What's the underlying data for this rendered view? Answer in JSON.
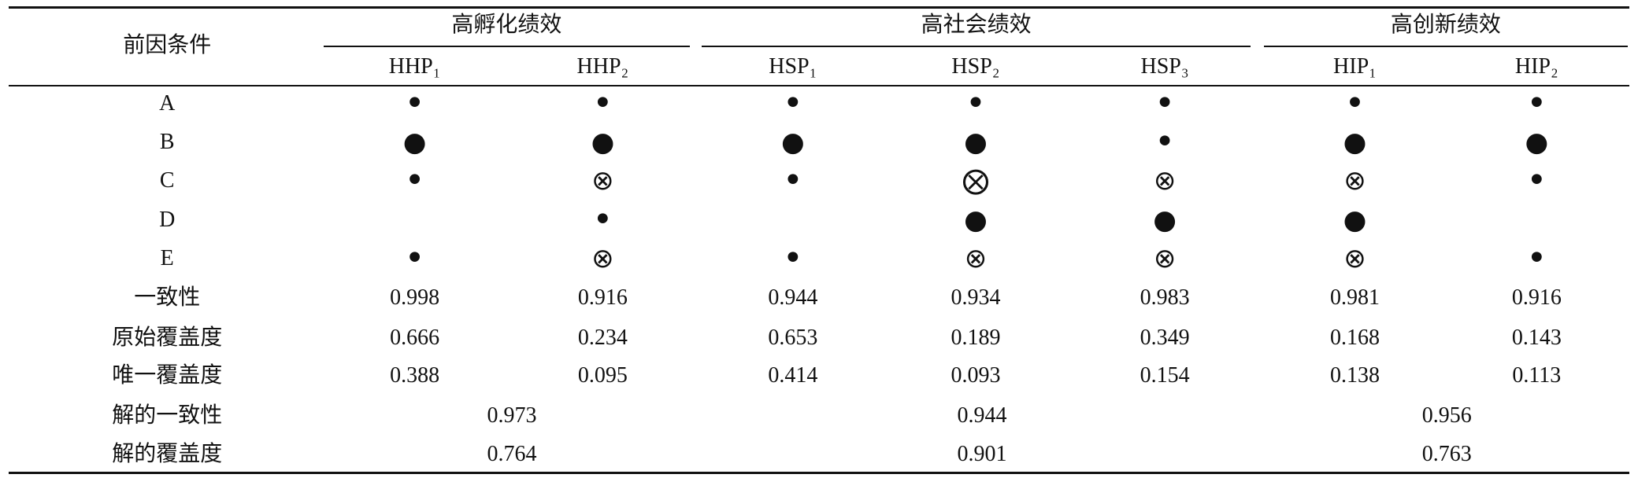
{
  "table": {
    "corner": "前因条件",
    "groups": [
      {
        "title": "高孵化绩效",
        "columns": [
          "HHP₁",
          "HHP₂"
        ]
      },
      {
        "title": "高社会绩效",
        "columns": [
          "HSP₁",
          "HSP₂",
          "HSP₃"
        ]
      },
      {
        "title": "高创新绩效",
        "columns": [
          "HIP₁",
          "HIP₂"
        ]
      }
    ],
    "rows": [
      {
        "label": "A",
        "cells": [
          "•",
          "•",
          "•",
          "•",
          "•",
          "•",
          "•"
        ]
      },
      {
        "label": "B",
        "cells": [
          "●",
          "●",
          "●",
          "●",
          "•",
          "●",
          "●"
        ]
      },
      {
        "label": "C",
        "cells": [
          "•",
          "⊗",
          "•",
          "⨂",
          "⊗",
          "⊗",
          "•"
        ]
      },
      {
        "label": "D",
        "cells": [
          null,
          "•",
          null,
          "●",
          "●",
          "●",
          null
        ]
      },
      {
        "label": "E",
        "cells": [
          "•",
          "⊗",
          "•",
          "⊗",
          "⊗",
          "⊗",
          "•"
        ]
      },
      {
        "label": "一致性",
        "cells": [
          0.998,
          0.916,
          0.944,
          0.934,
          0.983,
          0.981,
          0.916
        ]
      },
      {
        "label": "原始覆盖度",
        "cells": [
          0.666,
          0.234,
          0.653,
          0.189,
          0.349,
          0.168,
          0.143
        ]
      },
      {
        "label": "唯一覆盖度",
        "cells": [
          0.388,
          0.095,
          0.414,
          0.093,
          0.154,
          0.138,
          0.113
        ]
      }
    ],
    "solution_rows": [
      {
        "label": "解的一致性",
        "values": [
          0.973,
          0.944,
          0.956
        ]
      },
      {
        "label": "解的覆盖度",
        "values": [
          0.764,
          0.901,
          0.763
        ]
      }
    ]
  }
}
